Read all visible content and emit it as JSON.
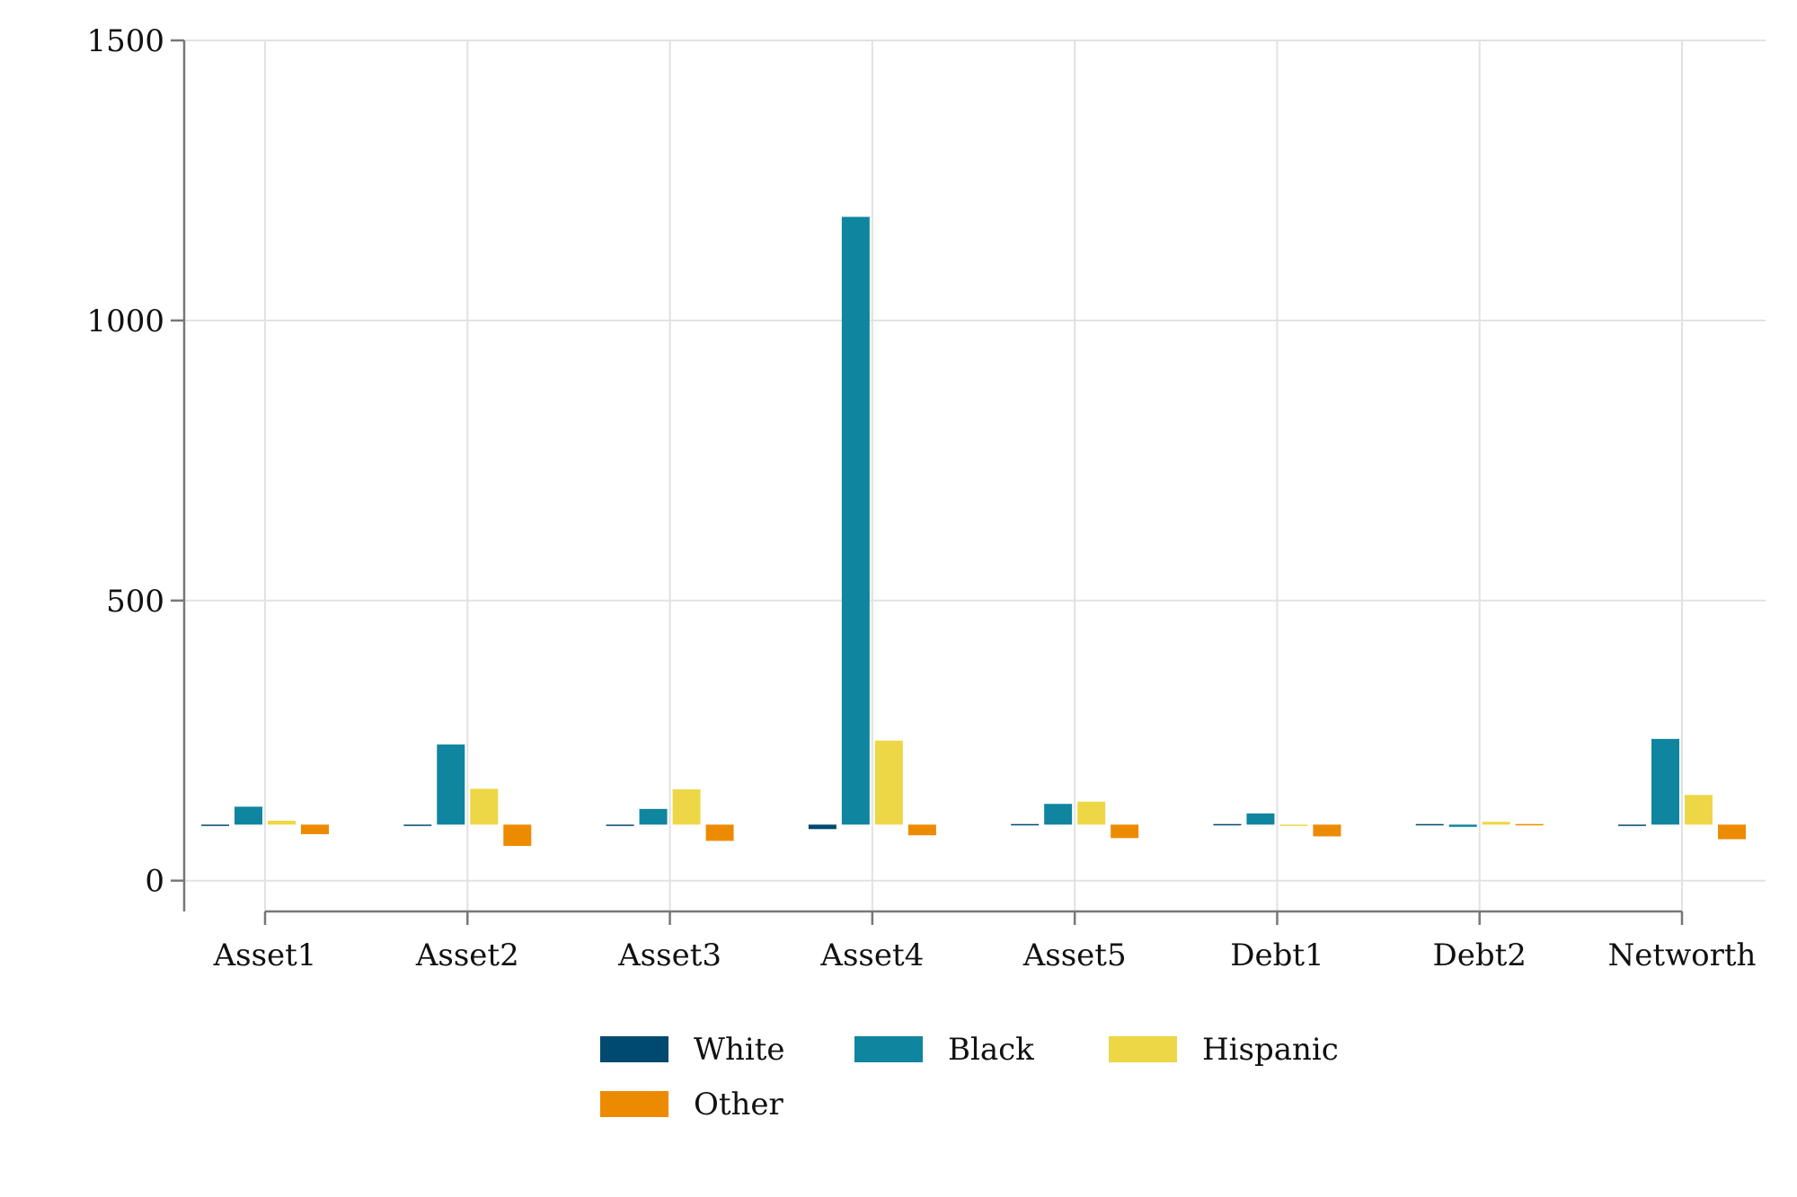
{
  "chart_data": {
    "type": "bar",
    "title": "",
    "xlabel": "",
    "ylabel": "",
    "baseline": 100,
    "ylim": [
      -55,
      1500
    ],
    "yticks": [
      0,
      500,
      1000,
      1500
    ],
    "categories": [
      "Asset1",
      "Asset2",
      "Asset3",
      "Asset4",
      "Asset5",
      "Debt1",
      "Debt2",
      "Networth"
    ],
    "series": [
      {
        "name": "White",
        "color": "#00496F",
        "values": [
          100,
          98,
          98,
          92,
          101,
          101,
          101,
          98
        ]
      },
      {
        "name": "Black",
        "color": "#0F85A0",
        "values": [
          132,
          243,
          128,
          1185,
          137,
          120,
          96,
          253
        ]
      },
      {
        "name": "Hispanic",
        "color": "#EDD746",
        "values": [
          107,
          164,
          163,
          250,
          141,
          99,
          105,
          153
        ]
      },
      {
        "name": "Other",
        "color": "#ED8B00",
        "values": [
          83,
          62,
          71,
          81,
          76,
          79,
          101,
          74
        ]
      }
    ],
    "grid": true,
    "legend": {
      "position": "bottom",
      "columns": 3
    }
  }
}
